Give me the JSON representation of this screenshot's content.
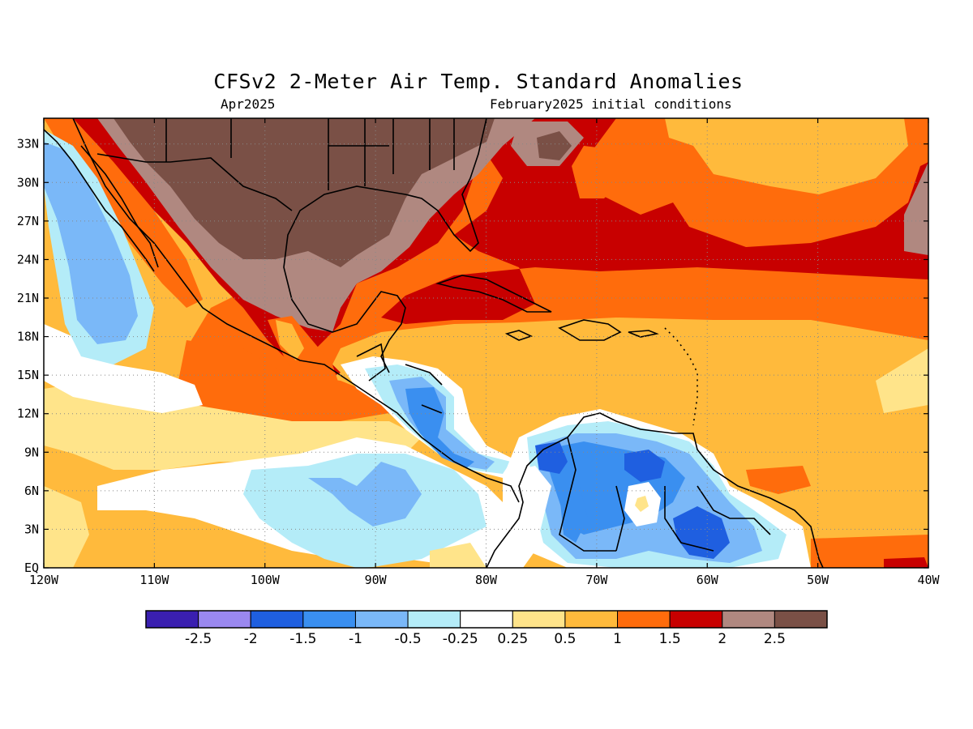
{
  "header": {
    "title": "CFSv2 2-Meter Air Temp. Standard Anomalies",
    "valid_month": "Apr2025",
    "initial_conditions": "February2025 initial conditions"
  },
  "map": {
    "lon_range": [
      -120,
      -40
    ],
    "lat_range": [
      0,
      35
    ],
    "lon_ticks": [
      {
        "value": -120,
        "label": "120W"
      },
      {
        "value": -110,
        "label": "110W"
      },
      {
        "value": -100,
        "label": "100W"
      },
      {
        "value": -90,
        "label": "90W"
      },
      {
        "value": -80,
        "label": "80W"
      },
      {
        "value": -70,
        "label": "70W"
      },
      {
        "value": -60,
        "label": "60W"
      },
      {
        "value": -50,
        "label": "50W"
      },
      {
        "value": -40,
        "label": "40W"
      }
    ],
    "lat_ticks": [
      {
        "value": 0,
        "label": "EQ"
      },
      {
        "value": 3,
        "label": "3N"
      },
      {
        "value": 6,
        "label": "6N"
      },
      {
        "value": 9,
        "label": "9N"
      },
      {
        "value": 12,
        "label": "12N"
      },
      {
        "value": 15,
        "label": "15N"
      },
      {
        "value": 18,
        "label": "18N"
      },
      {
        "value": 21,
        "label": "21N"
      },
      {
        "value": 24,
        "label": "24N"
      },
      {
        "value": 27,
        "label": "27N"
      },
      {
        "value": 30,
        "label": "30N"
      },
      {
        "value": 33,
        "label": "33N"
      }
    ],
    "gridlines": "dotted"
  },
  "colorbar": {
    "colors": [
      "#3a1fb0",
      "#9a88f0",
      "#1f5fe0",
      "#3a8ff0",
      "#7ab8f8",
      "#b4ecf8",
      "#ffffff",
      "#ffe48a",
      "#ffba3c",
      "#ff6c0c",
      "#c80000",
      "#b08880",
      "#7a5046"
    ],
    "labels": [
      "-2.5",
      "-2",
      "-1.5",
      "-1",
      "-0.5",
      "-0.25",
      "0.25",
      "0.5",
      "1",
      "1.5",
      "2",
      "2.5"
    ]
  }
}
